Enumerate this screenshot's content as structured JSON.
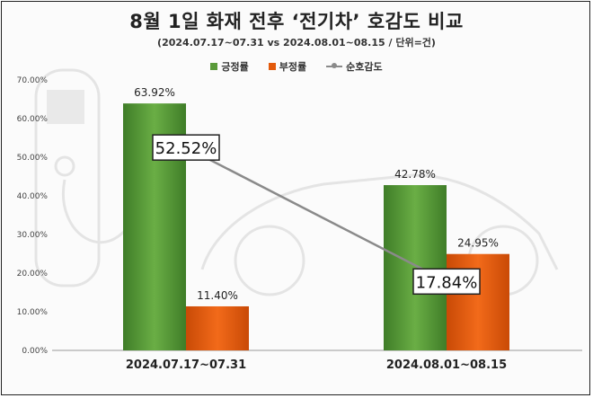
{
  "chart_data": {
    "type": "bar",
    "title": "8월 1일 화재 전후 ‘전기차’ 호감도 비교",
    "subtitle": "(2024.07.17~07.31  vs 2024.08.01~08.15  / 단위=건)",
    "categories": [
      "2024.07.17~07.31",
      "2024.08.01~08.15"
    ],
    "series": [
      {
        "name": "긍정률",
        "type": "bar",
        "values": [
          63.92,
          42.78
        ],
        "labels": [
          "63.92%",
          "42.78%"
        ],
        "color": "#5a9a3a"
      },
      {
        "name": "부정률",
        "type": "bar",
        "values": [
          11.4,
          24.95
        ],
        "labels": [
          "11.40%",
          "24.95%"
        ],
        "color": "#e35a0c"
      },
      {
        "name": "순호감도",
        "type": "line",
        "values": [
          52.52,
          17.84
        ],
        "labels": [
          "52.52%",
          "17.84%"
        ],
        "color": "#8a8a8a"
      }
    ],
    "ylim": [
      0,
      70
    ],
    "yticks": [
      "0.00%",
      "10.00%",
      "20.00%",
      "30.00%",
      "40.00%",
      "50.00%",
      "60.00%",
      "70.00%"
    ],
    "legend_position": "top-right",
    "grid": false
  }
}
